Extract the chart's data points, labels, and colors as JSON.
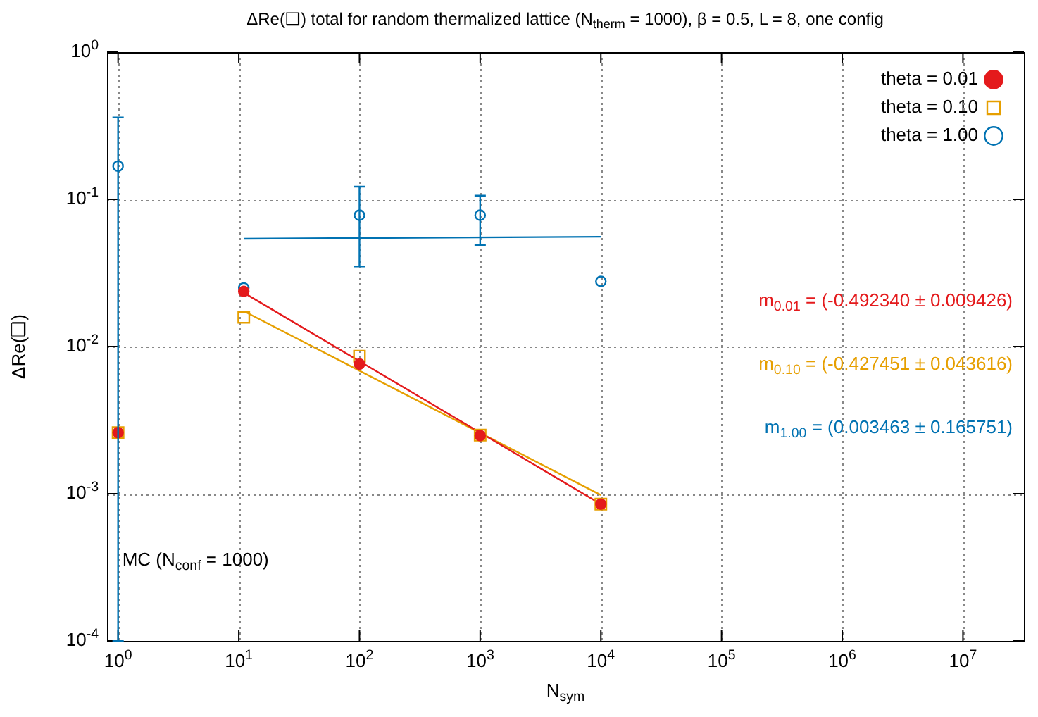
{
  "chart_data": {
    "type": "scatter",
    "title": "ΔRe(❑) total for random thermalized lattice (N$_{therm}$ = 1000), β = 0.5, L = 8, one config",
    "xlabel": "N$_{sym}$",
    "ylabel": "ΔRe(❑)",
    "log": "xy",
    "grid": true,
    "legend": "top right",
    "xlim": [
      0.81,
      32000000
    ],
    "ylim": [
      0.0001,
      1
    ],
    "xticks": [
      {
        "value": 1,
        "label": "10$^{0}$"
      },
      {
        "value": 10,
        "label": "10$^{1}$"
      },
      {
        "value": 100,
        "label": "10$^{2}$"
      },
      {
        "value": 1000,
        "label": "10$^{3}$"
      },
      {
        "value": 10000,
        "label": "10$^{4}$"
      },
      {
        "value": 100000,
        "label": "10$^{5}$"
      },
      {
        "value": 1000000,
        "label": "10$^{6}$"
      },
      {
        "value": 10000000,
        "label": "10$^{7}$"
      }
    ],
    "yticks": [
      {
        "value": 0.0001,
        "label": "10$^{-4}$"
      },
      {
        "value": 0.001,
        "label": "10$^{-3}$"
      },
      {
        "value": 0.01,
        "label": "10$^{-2}$"
      },
      {
        "value": 0.1,
        "label": "10$^{-1}$"
      },
      {
        "value": 1,
        "label": "10$^{0}$"
      }
    ],
    "annotations": [
      {
        "text": "MC (N$_{conf}$ = 1000)",
        "x": 1,
        "y": 0.00035
      },
      "m$_{0.01}$ = (-0.492340 ± 0.009426)",
      "m$_{0.10}$ = (-0.427451 ± 0.043616)",
      "m$_{1.00}$ = (0.003463 ± 0.165751)"
    ],
    "series": [
      {
        "name": "theta = 0.01",
        "color": "#e41a1c",
        "marker": "circle",
        "x": [
          1,
          11,
          100,
          1000,
          10000
        ],
        "values": [
          0.0026,
          0.0237,
          0.0076,
          0.00248,
          0.00085
        ]
      },
      {
        "name": "theta = 0.10",
        "color": "#e69f00",
        "marker": "square",
        "x": [
          1,
          11,
          100,
          1000,
          10000
        ],
        "values": [
          0.0026,
          0.0158,
          0.0086,
          0.0025,
          0.00085
        ]
      },
      {
        "name": "theta = 1.00",
        "color": "#0072b2",
        "marker": "circle",
        "x": [
          1,
          11,
          100,
          1000,
          10000
        ],
        "values": [
          0.168,
          0.025,
          0.078,
          0.078,
          0.0277
        ],
        "errors": [
          [
            0.0001,
            0.36
          ],
          null,
          [
            0.035,
            0.122
          ],
          [
            0.049,
            0.106
          ],
          null
        ]
      },
      {
        "type": "line",
        "color": "#e41a1c",
        "marker": "none",
        "x": [
          11,
          10000
        ],
        "values": [
          0.0232,
          0.00085
        ]
      },
      {
        "type": "line",
        "color": "#e69f00",
        "marker": "none",
        "x": [
          11,
          10000
        ],
        "values": [
          0.0174,
          0.00098
        ]
      },
      {
        "type": "line",
        "color": "#0072b2",
        "marker": "none",
        "x": [
          11,
          10000
        ],
        "values": [
          0.054,
          0.0557
        ]
      }
    ]
  }
}
